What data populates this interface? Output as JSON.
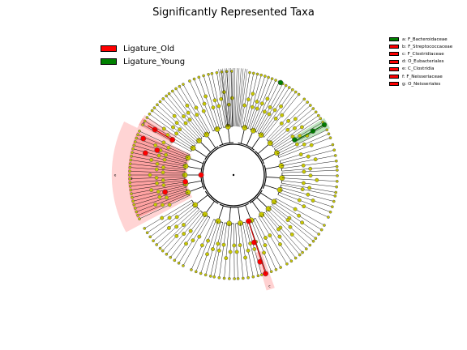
{
  "title": "Significantly Represented Taxa",
  "legend": [
    {
      "label": "Ligature_Old",
      "color": "#ff0000"
    },
    {
      "label": "Ligature_Young",
      "color": "#008000"
    }
  ],
  "taxa_key": [
    {
      "label": "a: F_Bacteroidaceae",
      "letter": "a",
      "color": "#008000"
    },
    {
      "label": "b: F_Streptococcaceae",
      "letter": "b",
      "color": "#ff0000"
    },
    {
      "label": "c: F_Clostridiaceae",
      "letter": "c",
      "color": "#ff0000"
    },
    {
      "label": "d: O_Eubacteriales",
      "letter": "d",
      "color": "#ff0000"
    },
    {
      "label": "e: C_Clostridia",
      "letter": "e",
      "color": "#ff0000"
    },
    {
      "label": "f: F_Neisseriaceae",
      "letter": "f",
      "color": "#ff0000"
    },
    {
      "label": "g: O_Neisseriales",
      "letter": "g",
      "color": "#ff0000"
    }
  ],
  "colors": {
    "node": "#c8c800",
    "edge": "#000000",
    "old_band": "#ff9999",
    "old_band_light": "#ffcccc",
    "young_band": "#b5e0b5"
  },
  "chart_data": {
    "type": "cladogram",
    "title": "Significantly Represented Taxa",
    "groups": [
      "Ligature_Old",
      "Ligature_Young"
    ],
    "highlighted_clades": [
      {
        "letter": "a",
        "taxon": "F_Bacteroidaceae",
        "group": "Ligature_Young"
      },
      {
        "letter": "b",
        "taxon": "F_Streptococcaceae",
        "group": "Ligature_Old"
      },
      {
        "letter": "c",
        "taxon": "F_Clostridiaceae",
        "group": "Ligature_Old"
      },
      {
        "letter": "d",
        "taxon": "O_Eubacteriales",
        "group": "Ligature_Old"
      },
      {
        "letter": "e",
        "taxon": "C_Clostridia",
        "group": "Ligature_Old"
      },
      {
        "letter": "f",
        "taxon": "F_Neisseriaceae",
        "group": "Ligature_Old"
      },
      {
        "letter": "g",
        "taxon": "O_Neisseriales",
        "group": "Ligature_Old"
      }
    ]
  }
}
